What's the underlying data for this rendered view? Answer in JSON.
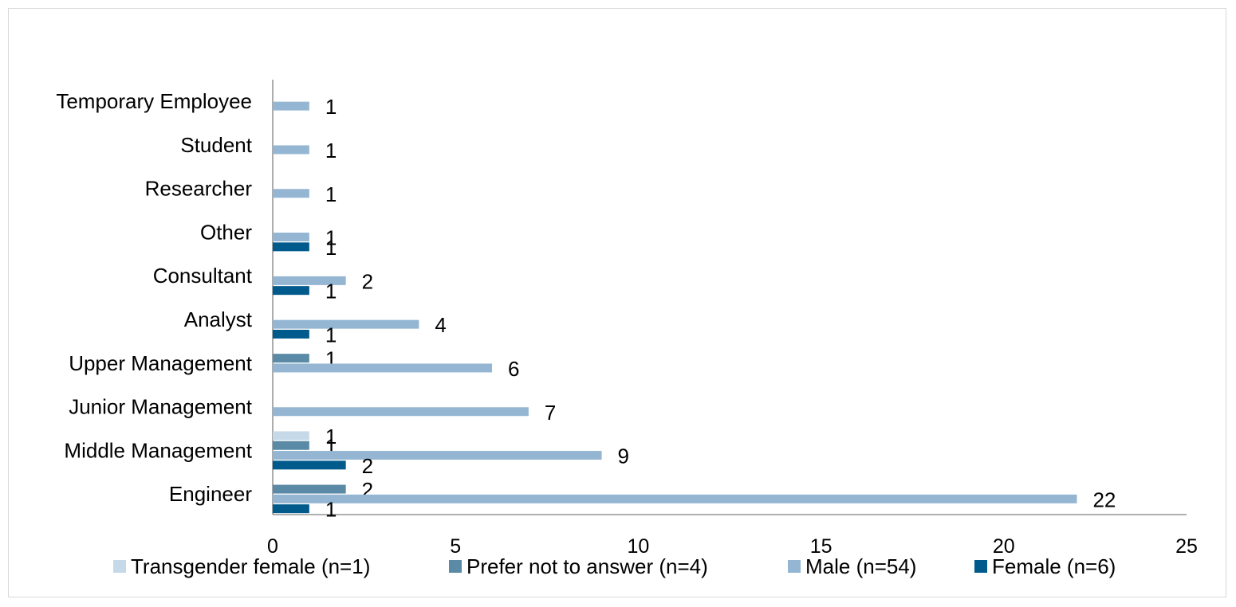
{
  "chart_data": {
    "type": "bar",
    "orientation": "horizontal",
    "categories": [
      "Temporary Employee",
      "Student",
      "Researcher",
      "Other",
      "Consultant",
      "Analyst",
      "Upper Management",
      "Junior Management",
      "Middle Management",
      "Engineer"
    ],
    "series": [
      {
        "name": "Transgender female (n=1)",
        "color": "#c5d9e8",
        "values": [
          null,
          null,
          null,
          null,
          null,
          null,
          null,
          null,
          1,
          null
        ]
      },
      {
        "name": "Prefer not to answer (n=4)",
        "color": "#5b8aa6",
        "values": [
          null,
          null,
          null,
          null,
          null,
          null,
          1,
          null,
          1,
          2
        ]
      },
      {
        "name": "Male (n=54)",
        "color": "#94b6d2",
        "values": [
          1,
          1,
          1,
          1,
          2,
          4,
          6,
          7,
          9,
          22
        ]
      },
      {
        "name": "Female (n=6)",
        "color": "#005a8c",
        "values": [
          null,
          null,
          null,
          1,
          1,
          1,
          null,
          null,
          2,
          1
        ]
      }
    ],
    "xlim": [
      0,
      25
    ],
    "xticks": [
      "0",
      "5",
      "10",
      "15",
      "20",
      "25"
    ],
    "title": "",
    "xlabel": "",
    "ylabel": "",
    "grid": false,
    "legend_position": "bottom"
  }
}
